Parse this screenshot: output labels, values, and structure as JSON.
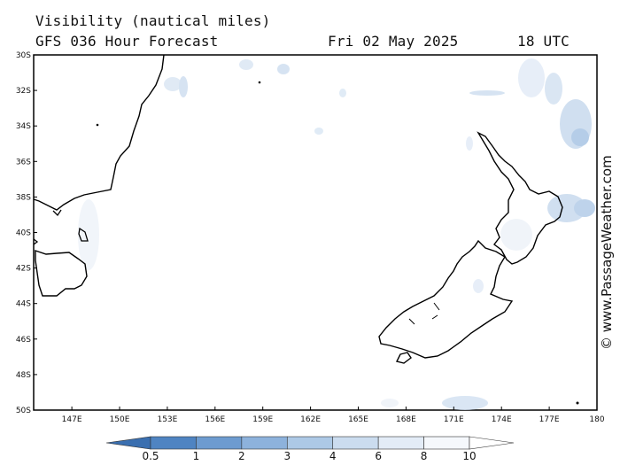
{
  "header": {
    "title": "Visibility (nautical miles)",
    "model": "GFS 036 Hour Forecast",
    "date": "Fri 02 May 2025",
    "time": "18 UTC"
  },
  "credit": "© www.PassageWeather.com",
  "map": {
    "lon_range": [
      144.6,
      180.0
    ],
    "lat_range": [
      -50.0,
      -30.0
    ],
    "lon_ticks": [
      147,
      150,
      153,
      156,
      159,
      162,
      165,
      168,
      171,
      174,
      177,
      180
    ],
    "lat_ticks": [
      -30,
      -32,
      -34,
      -36,
      -38,
      -40,
      -42,
      -44,
      -46,
      -48,
      -50
    ],
    "lon_labels": [
      "147E",
      "150E",
      "153E",
      "156E",
      "159E",
      "162E",
      "165E",
      "168E",
      "171E",
      "174E",
      "177E",
      "180"
    ],
    "lat_labels": [
      "30S",
      "32S",
      "34S",
      "36S",
      "38S",
      "40S",
      "42S",
      "44S",
      "46S",
      "48S",
      "50S"
    ]
  },
  "colorbar": {
    "levels": [
      "0.5",
      "1",
      "2",
      "3",
      "4",
      "6",
      "8",
      "10"
    ],
    "colors": [
      "#3a6fb0",
      "#4f84c2",
      "#6d9bd0",
      "#8db2dc",
      "#adc9e6",
      "#cbdcef",
      "#e3ecf7",
      "#f5f8fc"
    ]
  },
  "colors": {
    "land_outline": "#000000",
    "frame": "#000000",
    "background": "#ffffff"
  }
}
